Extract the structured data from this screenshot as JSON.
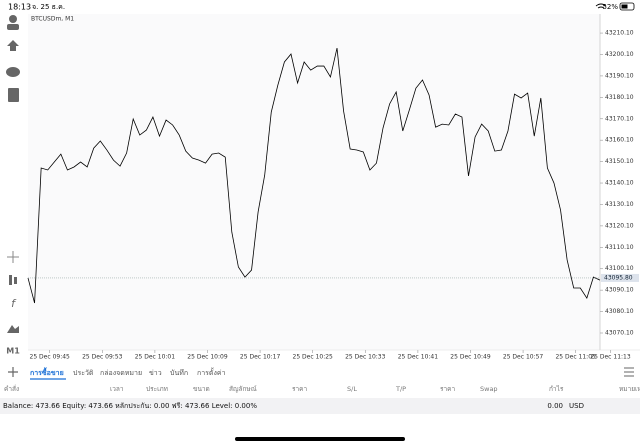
{
  "status_bar": {
    "time": "18:13",
    "date": "จ. 25 ธ.ค.",
    "battery": "52%"
  },
  "toolbar": {
    "timeframe": "M1",
    "indicator": "f"
  },
  "chart_data": {
    "type": "line",
    "title": "BTCUSDm, M1",
    "color": "#000000",
    "values": [
      43095.8,
      43084.1,
      43147.1,
      43146.2,
      43149.9,
      43153.6,
      43146.2,
      43147.6,
      43149.9,
      43147.6,
      43156.4,
      43159.7,
      43155.5,
      43150.8,
      43148.0,
      43154.1,
      43170.0,
      43162.5,
      43164.8,
      43170.9,
      43162.0,
      43169.5,
      43167.2,
      43162.5,
      43155.0,
      43151.8,
      43150.8,
      43149.4,
      43153.6,
      43154.1,
      43152.2,
      43117.2,
      43100.9,
      43096.2,
      43099.5,
      43126.6,
      43143.8,
      43173.2,
      43185.8,
      43196.6,
      43200.3,
      43186.8,
      43196.6,
      43192.8,
      43194.7,
      43194.7,
      43189.6,
      43203.1,
      43173.7,
      43156.0,
      43155.5,
      43154.6,
      43146.2,
      43149.4,
      43165.8,
      43177.0,
      43182.6,
      43164.4,
      43174.2,
      43184.4,
      43188.2,
      43181.2,
      43166.2,
      43167.6,
      43167.2,
      43172.3,
      43170.9,
      43143.4,
      43161.6,
      43167.6,
      43164.4,
      43155.0,
      43155.5,
      43164.4,
      43181.6,
      43179.8,
      43182.1,
      43162.0,
      43179.8,
      43147.1,
      43140.1,
      43127.5,
      43104.2,
      43091.1,
      43091.1,
      43086.4,
      43096.2,
      43094.8
    ],
    "xlim": [
      0,
      87
    ],
    "xticks": [
      {
        "value": 3.3,
        "label": "25 Dec 09:45"
      },
      {
        "value": 11.3,
        "label": "25 Dec 09:53"
      },
      {
        "value": 19.3,
        "label": "25 Dec 10:01"
      },
      {
        "value": 27.3,
        "label": "25 Dec 10:09"
      },
      {
        "value": 35.3,
        "label": "25 Dec 10:17"
      },
      {
        "value": 43.3,
        "label": "25 Dec 10:25"
      },
      {
        "value": 51.3,
        "label": "25 Dec 10:33"
      },
      {
        "value": 59.3,
        "label": "25 Dec 10:41"
      },
      {
        "value": 67.3,
        "label": "25 Dec 10:49"
      },
      {
        "value": 75.3,
        "label": "25 Dec 10:57"
      },
      {
        "value": 83.3,
        "label": "25 Dec 11:05"
      },
      {
        "value": 88.6,
        "label": "25 Dec 11:13"
      }
    ],
    "ylim": [
      43063.1,
      43217.6
    ],
    "yticks": [
      {
        "value": 43070.1,
        "label": "43070.10"
      },
      {
        "value": 43080.1,
        "label": "43080.10"
      },
      {
        "value": 43090.1,
        "label": "43090.10"
      },
      {
        "value": 43100.1,
        "label": "43100.10"
      },
      {
        "value": 43110.1,
        "label": "43110.10"
      },
      {
        "value": 43120.1,
        "label": "43120.10"
      },
      {
        "value": 43130.1,
        "label": "43130.10"
      },
      {
        "value": 43140.1,
        "label": "43140.10"
      },
      {
        "value": 43150.1,
        "label": "43150.10"
      },
      {
        "value": 43160.1,
        "label": "43160.10"
      },
      {
        "value": 43170.1,
        "label": "43170.10"
      },
      {
        "value": 43180.1,
        "label": "43180.10"
      },
      {
        "value": 43190.1,
        "label": "43190.10"
      },
      {
        "value": 43200.1,
        "label": "43200.10"
      },
      {
        "value": 43210.1,
        "label": "43210.10"
      }
    ],
    "price_line": {
      "value": 43095.8,
      "label": "43095.80"
    }
  },
  "tabs": [
    "การซื้อขาย",
    "ประวัติ",
    "กล่องจดหมาย",
    "ข่าว",
    "บันทึก",
    "การตั้งค่า"
  ],
  "columns": [
    "คำสั่ง",
    "เวลา",
    "ประเภท",
    "ขนาด",
    "สัญลักษณ์",
    "ราคา",
    "S/L",
    "T/P",
    "ราคา",
    "Swap",
    "กำไร",
    "หมายเหตุ"
  ],
  "summary": {
    "text": "Balance: 473.66 Equity: 473.66 หลักประกัน: 0.00 ฟรี: 473.66 Level: 0.00%",
    "profit": "0.00",
    "currency": "USD"
  }
}
